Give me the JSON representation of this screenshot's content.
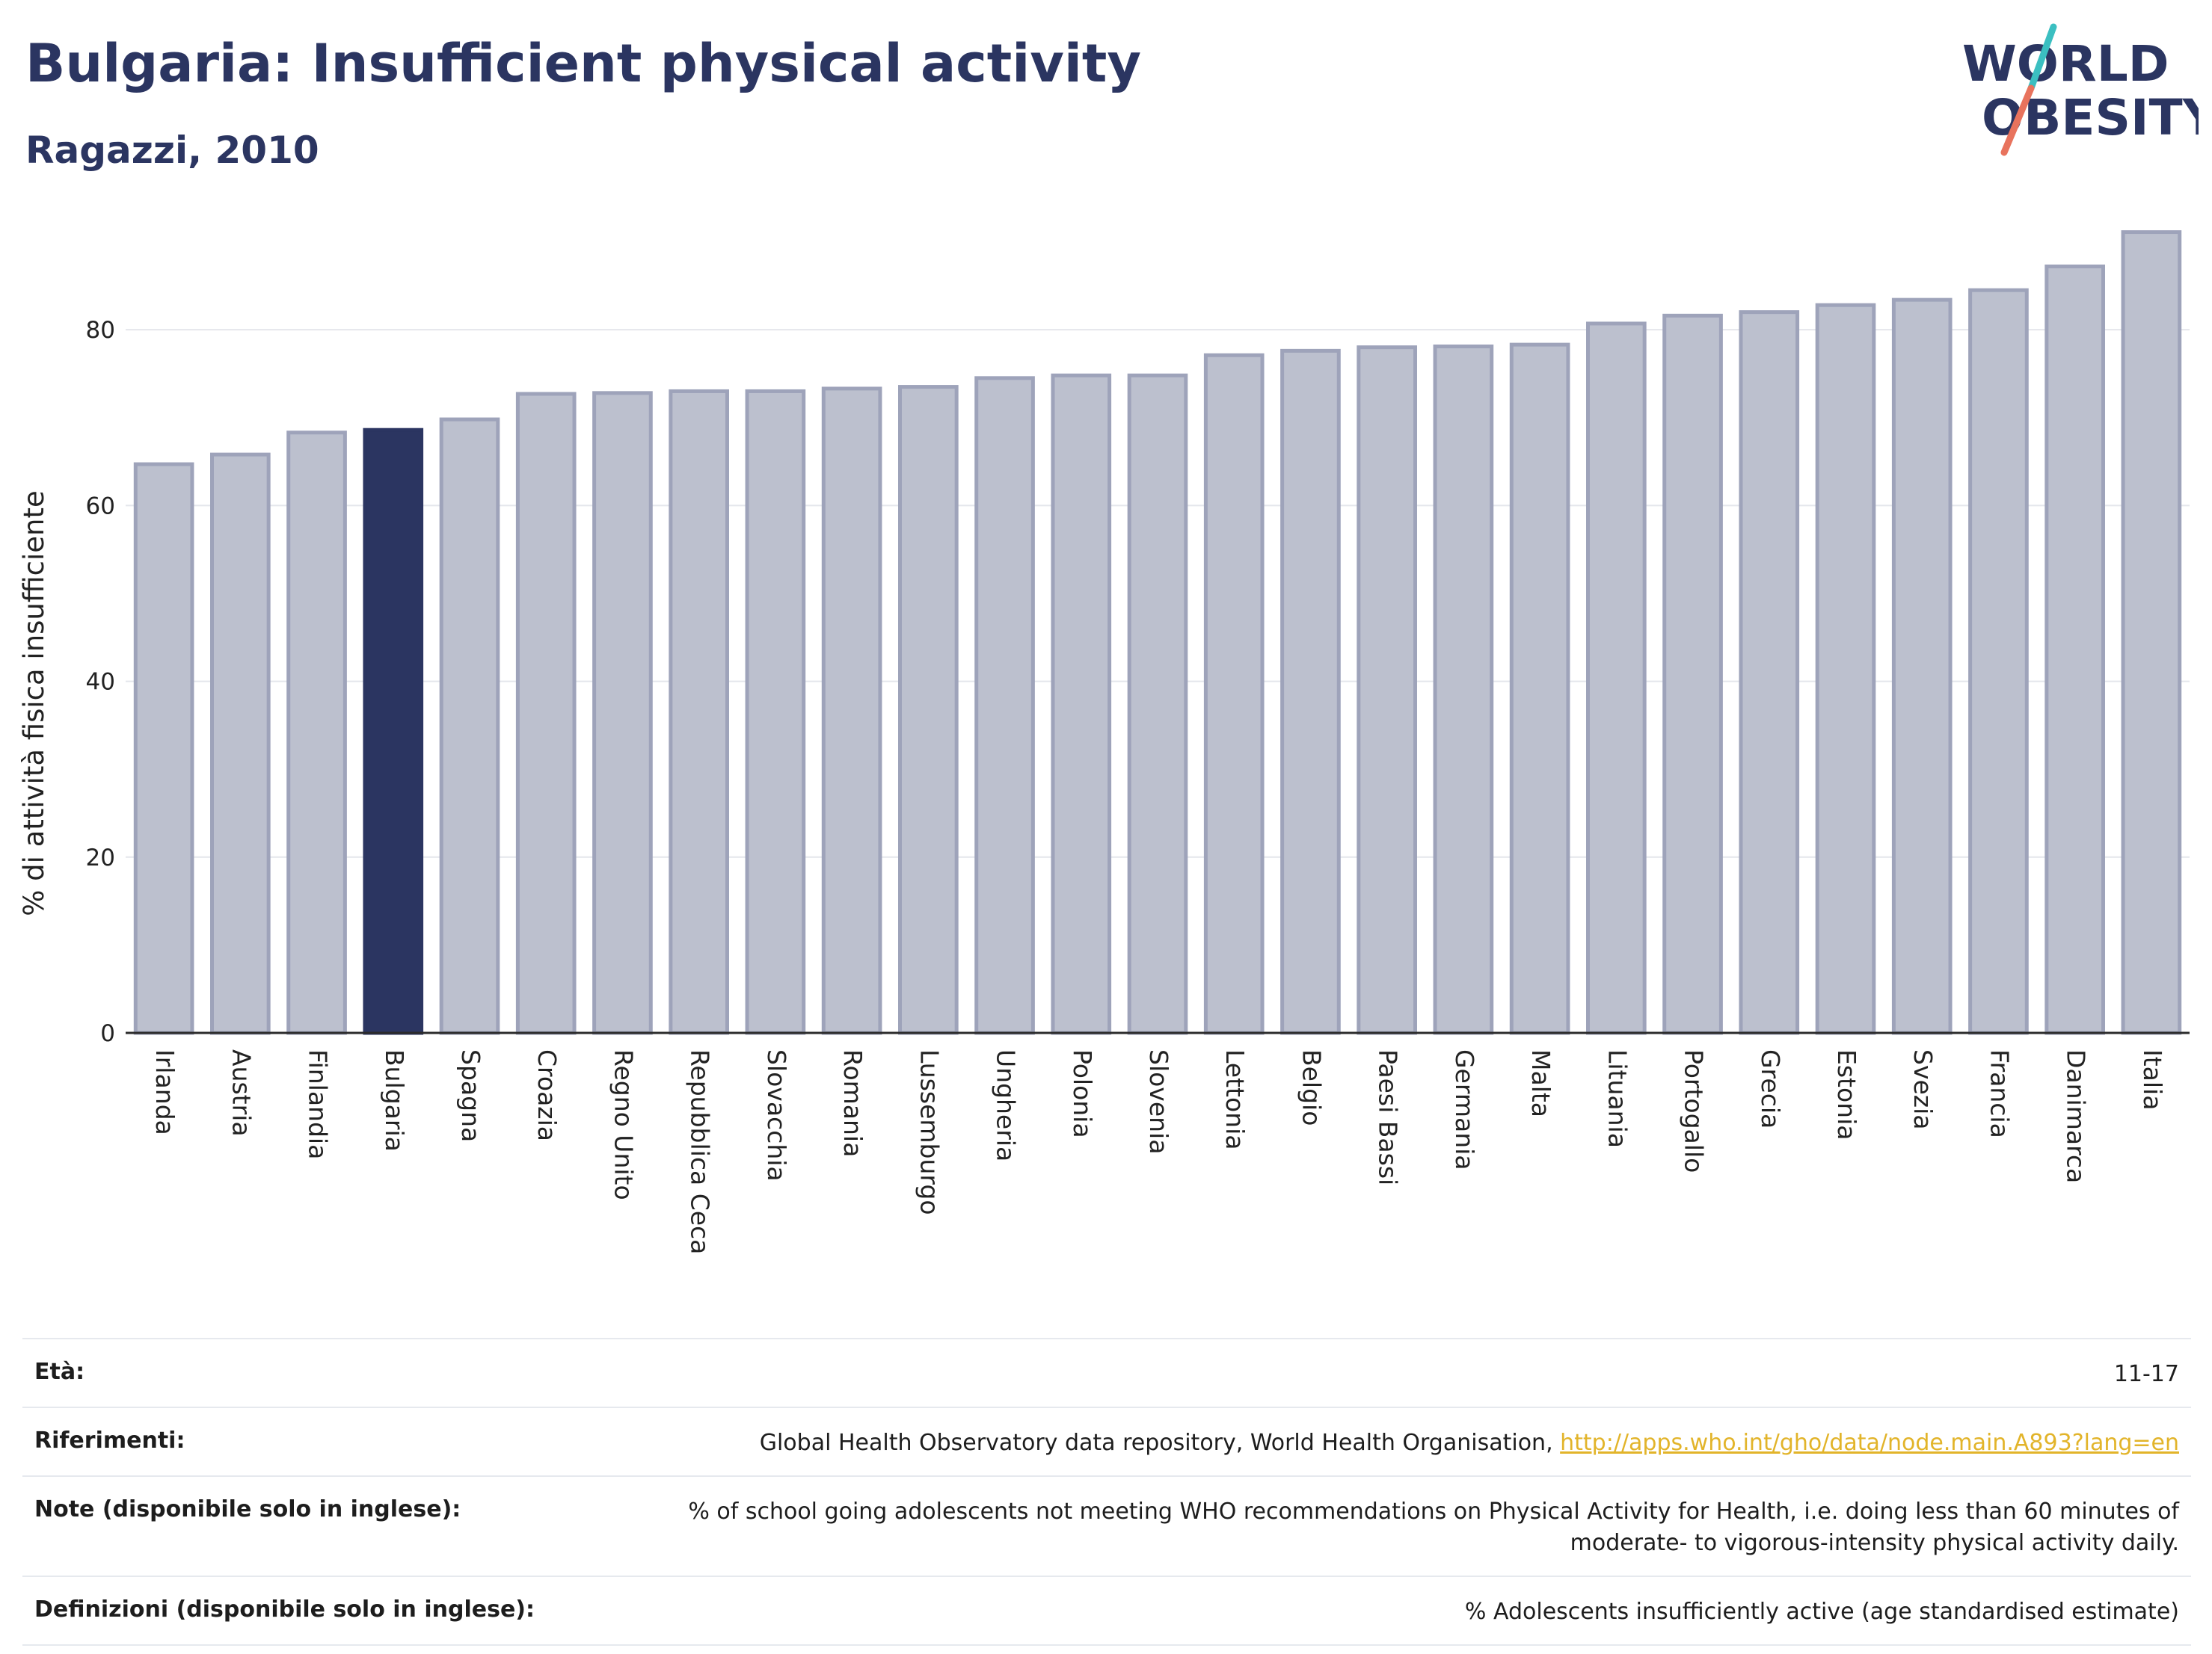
{
  "header": {
    "title": "Bulgaria: Insufficient physical activity",
    "subtitle": "Ragazzi, 2010"
  },
  "logo": {
    "line1": "WORLD",
    "line2": "OBESITY",
    "accent_colors": [
      "#3bbfc1",
      "#e8735d"
    ]
  },
  "chart_data": {
    "type": "bar",
    "title": "Bulgaria: Insufficient physical activity",
    "subtitle": "Ragazzi, 2010",
    "ylabel": "% di attività fisica insufficiente",
    "xlabel": "",
    "ylim": [
      0,
      92
    ],
    "yticks": [
      0,
      20,
      40,
      60,
      80
    ],
    "grid": true,
    "highlight": "Bulgaria",
    "colors": {
      "bar": "#bcc0ce",
      "bar_edge": "#9ea3ba",
      "highlight": "#2b3561"
    },
    "categories": [
      "Irlanda",
      "Austria",
      "Finlandia",
      "Bulgaria",
      "Spagna",
      "Croazia",
      "Regno Unito",
      "Repubblica Ceca",
      "Slovacchia",
      "Romania",
      "Lussemburgo",
      "Ungheria",
      "Polonia",
      "Slovenia",
      "Lettonia",
      "Belgio",
      "Paesi Bassi",
      "Germania",
      "Malta",
      "Lituania",
      "Portogallo",
      "Grecia",
      "Estonia",
      "Svezia",
      "Francia",
      "Danimarca",
      "Italia"
    ],
    "values": [
      64.7,
      65.8,
      68.3,
      68.6,
      69.8,
      72.7,
      72.8,
      73.0,
      73.0,
      73.3,
      73.5,
      74.5,
      74.8,
      74.8,
      77.1,
      77.6,
      78.0,
      78.1,
      78.3,
      80.7,
      81.6,
      82.0,
      82.8,
      83.4,
      84.5,
      87.2,
      91.1
    ]
  },
  "info": {
    "age": {
      "label": "Età:",
      "value": "11-17"
    },
    "references": {
      "label": "Riferimenti:",
      "text": "Global Health Observatory data repository, World Health Organisation, ",
      "link": "http://apps.who.int/gho/data/node.main.A893?lang=en"
    },
    "notes": {
      "label": "Note (disponibile solo in inglese):",
      "line1": "% of school going adolescents not meeting WHO recommendations on Physical Activity for Health, i.e. doing less than 60 minutes of",
      "line2": "moderate- to vigorous-intensity physical activity daily."
    },
    "definitions": {
      "label": "Definizioni (disponibile solo in inglese):",
      "value": "% Adolescents insufficiently active (age standardised estimate)"
    }
  }
}
